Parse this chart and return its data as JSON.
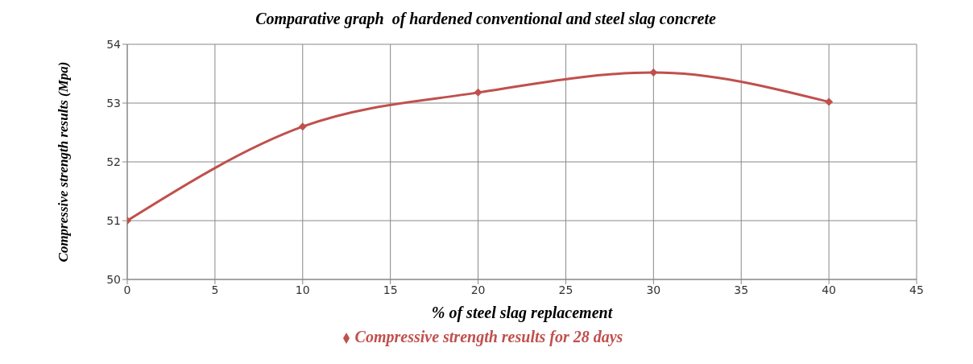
{
  "chart_data": {
    "type": "line",
    "title": "Comparative graph  of hardened conventional and steel slag concrete",
    "xlabel": "% of steel slag replacement",
    "ylabel": "Compressive strength results (Mpa)",
    "x": [
      0,
      10,
      20,
      30,
      40
    ],
    "series": [
      {
        "name": "Compressive strength results for 28 days",
        "color": "#c0504d",
        "values": [
          51,
          52.6,
          53.18,
          53.52,
          53.02
        ]
      }
    ],
    "xlim": [
      0,
      45
    ],
    "xticks": [
      0,
      5,
      10,
      15,
      20,
      25,
      30,
      35,
      40,
      45
    ],
    "ylim": [
      50,
      54
    ],
    "yticks": [
      50,
      51,
      52,
      53,
      54
    ],
    "grid": true,
    "legend": "bottom",
    "marker": "diamond",
    "line_style": "solid"
  }
}
